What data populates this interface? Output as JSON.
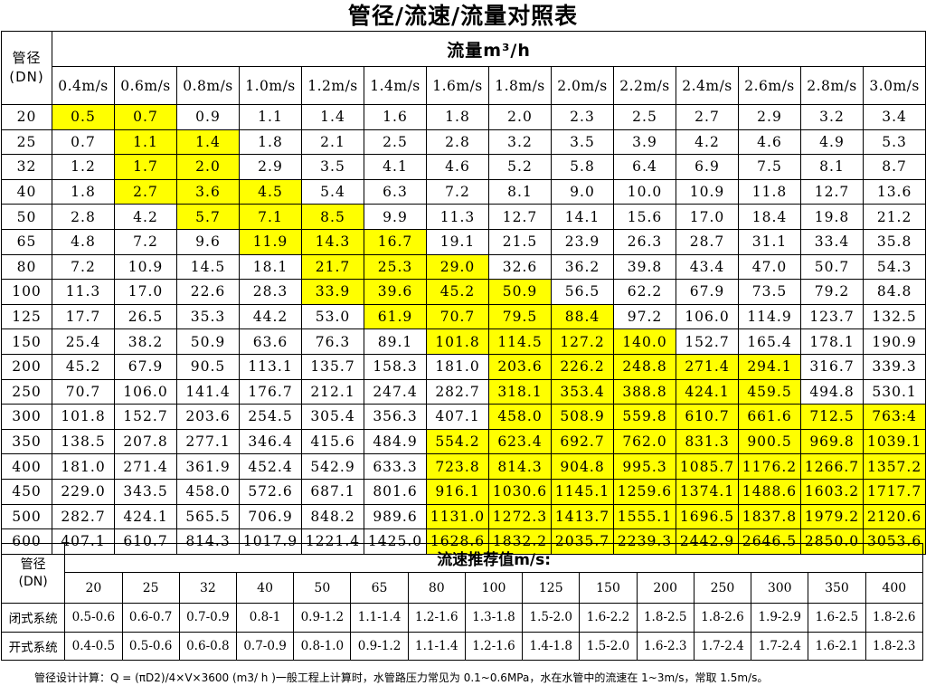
{
  "title": "管径/流速/流量对照表",
  "flow_table": {
    "corner_label": [
      "管径",
      "(DN)"
    ],
    "unit_header": "流量m³/h",
    "speeds": [
      "0.4m/s",
      "0.6m/s",
      "0.8m/s",
      "1.0m/s",
      "1.2m/s",
      "1.4m/s",
      "1.6m/s",
      "1.8m/s",
      "2.0m/s",
      "2.2m/s",
      "2.4m/s",
      "2.6m/s",
      "2.8m/s",
      "3.0m/s"
    ],
    "rows": [
      {
        "dn": "20",
        "values": [
          "0.5",
          "0.7",
          "0.9",
          "1.1",
          "1.4",
          "1.6",
          "1.8",
          "2.0",
          "2.3",
          "2.5",
          "2.7",
          "2.9",
          "3.2",
          "3.4"
        ]
      },
      {
        "dn": "25",
        "values": [
          "0.7",
          "1.1",
          "1.4",
          "1.8",
          "2.1",
          "2.5",
          "2.8",
          "3.2",
          "3.5",
          "3.9",
          "4.2",
          "4.6",
          "4.9",
          "5.3"
        ]
      },
      {
        "dn": "32",
        "values": [
          "1.2",
          "1.7",
          "2.0",
          "2.9",
          "3.5",
          "4.1",
          "4.6",
          "5.2",
          "5.8",
          "6.4",
          "6.9",
          "7.5",
          "8.1",
          "8.7"
        ]
      },
      {
        "dn": "40",
        "values": [
          "1.8",
          "2.7",
          "3.6",
          "4.5",
          "5.4",
          "6.3",
          "7.2",
          "8.1",
          "9.0",
          "10.0",
          "10.9",
          "11.8",
          "12.7",
          "13.6"
        ]
      },
      {
        "dn": "50",
        "values": [
          "2.8",
          "4.2",
          "5.7",
          "7.1",
          "8.5",
          "9.9",
          "11.3",
          "12.7",
          "14.1",
          "15.6",
          "17.0",
          "18.4",
          "19.8",
          "21.2"
        ]
      },
      {
        "dn": "65",
        "values": [
          "4.8",
          "7.2",
          "9.6",
          "11.9",
          "14.3",
          "16.7",
          "19.1",
          "21.5",
          "23.9",
          "26.3",
          "28.7",
          "31.1",
          "33.4",
          "35.8"
        ]
      },
      {
        "dn": "80",
        "values": [
          "7.2",
          "10.9",
          "14.5",
          "18.1",
          "21.7",
          "25.3",
          "29.0",
          "32.6",
          "36.2",
          "39.8",
          "43.4",
          "47.0",
          "50.7",
          "54.3"
        ]
      },
      {
        "dn": "100",
        "values": [
          "11.3",
          "17.0",
          "22.6",
          "28.3",
          "33.9",
          "39.6",
          "45.2",
          "50.9",
          "56.5",
          "62.2",
          "67.9",
          "73.5",
          "79.2",
          "84.8"
        ]
      },
      {
        "dn": "125",
        "values": [
          "17.7",
          "26.5",
          "35.3",
          "44.2",
          "53.0",
          "61.9",
          "70.7",
          "79.5",
          "88.4",
          "97.2",
          "106.0",
          "114.9",
          "123.7",
          "132.5"
        ]
      },
      {
        "dn": "150",
        "values": [
          "25.4",
          "38.2",
          "50.9",
          "63.6",
          "76.3",
          "89.1",
          "101.8",
          "114.5",
          "127.2",
          "140.0",
          "152.7",
          "165.4",
          "178.1",
          "190.9"
        ]
      },
      {
        "dn": "200",
        "values": [
          "45.2",
          "67.9",
          "90.5",
          "113.1",
          "135.7",
          "158.3",
          "181.0",
          "203.6",
          "226.2",
          "248.8",
          "271.4",
          "294.1",
          "316.7",
          "339.3"
        ]
      },
      {
        "dn": "250",
        "values": [
          "70.7",
          "106.0",
          "141.4",
          "176.7",
          "212.1",
          "247.4",
          "282.7",
          "318.1",
          "353.4",
          "388.8",
          "424.1",
          "459.5",
          "494.8",
          "530.1"
        ]
      },
      {
        "dn": "300",
        "values": [
          "101.8",
          "152.7",
          "203.6",
          "254.5",
          "305.4",
          "356.3",
          "407.1",
          "458.0",
          "508.9",
          "559.8",
          "610.7",
          "661.6",
          "712.5",
          "763:4"
        ]
      },
      {
        "dn": "350",
        "values": [
          "138.5",
          "207.8",
          "277.1",
          "346.4",
          "415.6",
          "484.9",
          "554.2",
          "623.4",
          "692.7",
          "762.0",
          "831.3",
          "900.5",
          "969.8",
          "1039.1"
        ]
      },
      {
        "dn": "400",
        "values": [
          "181.0",
          "271.4",
          "361.9",
          "452.4",
          "542.9",
          "633.3",
          "723.8",
          "814.3",
          "904.8",
          "995.3",
          "1085.7",
          "1176.2",
          "1266.7",
          "1357.2"
        ]
      },
      {
        "dn": "450",
        "values": [
          "229.0",
          "343.5",
          "458.0",
          "572.6",
          "687.1",
          "801.6",
          "916.1",
          "1030.6",
          "1145.1",
          "1259.6",
          "1374.1",
          "1488.6",
          "1603.2",
          "1717.7"
        ]
      },
      {
        "dn": "500",
        "values": [
          "282.7",
          "424.1",
          "565.5",
          "706.9",
          "848.2",
          "989.6",
          "1131.0",
          "1272.3",
          "1413.7",
          "1555.1",
          "1696.5",
          "1837.8",
          "1979.2",
          "2120.6"
        ]
      },
      {
        "dn": "600",
        "values": [
          "407.1",
          "610.7",
          "814.3",
          "1017.9",
          "1221.4",
          "1425.0",
          "1628.6",
          "1832.2",
          "2035.7",
          "2239.3",
          "2442.9",
          "2646.5",
          "2850.0",
          "3053.6"
        ]
      }
    ],
    "highlight_color": "#ffff00",
    "highlight_col_ranges": [
      [
        0,
        1
      ],
      [
        1,
        2
      ],
      [
        1,
        2
      ],
      [
        1,
        3
      ],
      [
        2,
        4
      ],
      [
        3,
        5
      ],
      [
        4,
        6
      ],
      [
        4,
        7
      ],
      [
        5,
        8
      ],
      [
        6,
        9
      ],
      [
        7,
        11
      ],
      [
        7,
        11
      ],
      [
        7,
        13
      ],
      [
        6,
        13
      ],
      [
        6,
        13
      ],
      [
        6,
        13
      ],
      [
        6,
        13
      ],
      [
        6,
        13
      ]
    ]
  },
  "recommend_table": {
    "corner_label": [
      "管径",
      "(DN)"
    ],
    "header": "流速推荐值m/s:",
    "dn_values": [
      "20",
      "25",
      "32",
      "40",
      "50",
      "65",
      "80",
      "100",
      "125",
      "150",
      "200",
      "250",
      "300",
      "350",
      "400"
    ],
    "systems": [
      {
        "label": "闭式系统",
        "values": [
          "0.5-0.6",
          "0.6-0.7",
          "0.7-0.9",
          "0.8-1",
          "0.9-1.2",
          "1.1-1.4",
          "1.2-1.6",
          "1.3-1.8",
          "1.5-2.0",
          "1.6-2.2",
          "1.8-2.5",
          "1.8-2.6",
          "1.9-2.9",
          "1.6-2.5",
          "1.8-2.6"
        ]
      },
      {
        "label": "开式系统",
        "values": [
          "0.4-0.5",
          "0.5-0.6",
          "0.6-0.8",
          "0.7-0.9",
          "0.8-1.0",
          "0.9-1.2",
          "1.1-1.4",
          "1.2-1.6",
          "1.4-1.8",
          "1.5-2.0",
          "1.6-2.3",
          "1.7-2.4",
          "1.7-2.4",
          "1.6-2.1",
          "1.8-2.3"
        ]
      }
    ]
  },
  "footnote": "管径设计计算：Q = (πD2)/4×V×3600 (m3/ h )一般工程上计算时，水管路压力常见为 0.1~0.6MPa，水在水管中的流速在 1~3m/s，常取 1.5m/s。"
}
